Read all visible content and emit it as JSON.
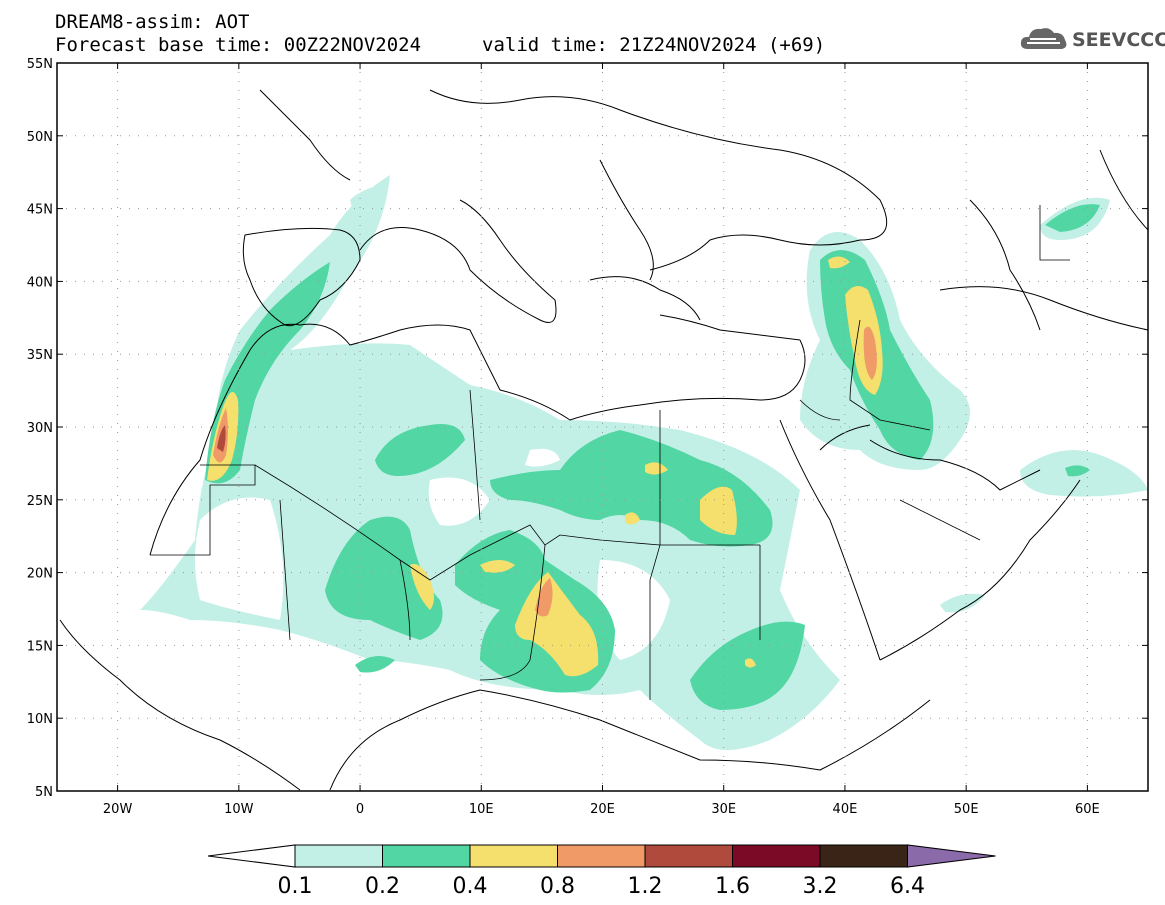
{
  "header": {
    "title_line1": "DREAM8-assim: AOT",
    "title_line2_left": "Forecast base time: 00Z22NOV2024",
    "title_line2_right": "valid time: 21Z24NOV2024 (+69)"
  },
  "logo": {
    "text": "SEEVCCC",
    "icon": "cloud-icon"
  },
  "map": {
    "lon_range": [
      -25,
      65
    ],
    "lat_range": [
      5,
      55
    ],
    "lat_ticks": [
      "5N",
      "10N",
      "15N",
      "20N",
      "25N",
      "30N",
      "35N",
      "40N",
      "45N",
      "50N",
      "55N"
    ],
    "lon_ticks": [
      "20W",
      "10W",
      "0",
      "10E",
      "20E",
      "30E",
      "40E",
      "50E",
      "60E"
    ],
    "grid": "dotted"
  },
  "colorbar": {
    "labels": [
      "0.1",
      "0.2",
      "0.4",
      "0.8",
      "1.2",
      "1.6",
      "3.2",
      "6.4"
    ],
    "colors": [
      "#c2f0e6",
      "#52d6a3",
      "#f5e06e",
      "#f09a68",
      "#b04a3c",
      "#7a0a26",
      "#3a2418",
      "#8a6aa8"
    ],
    "under_color": "#ffffff"
  }
}
